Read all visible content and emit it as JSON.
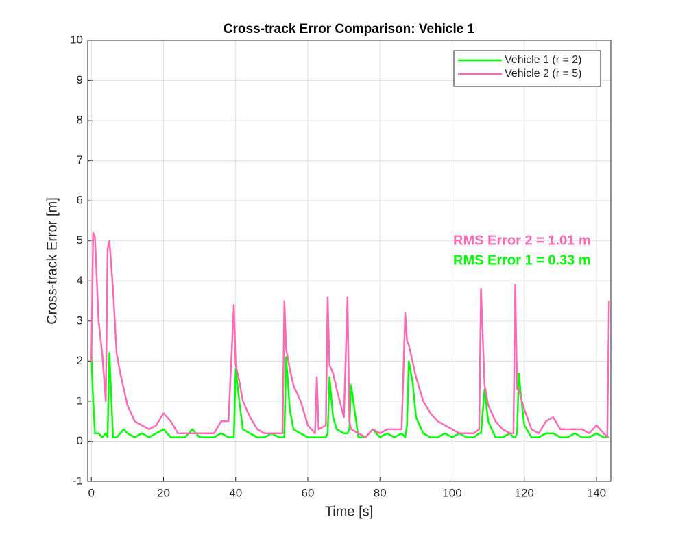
{
  "chart_data": {
    "type": "line",
    "title": "Cross-track Error Comparison: Vehicle 1",
    "xlabel": "Time [s]",
    "ylabel": "Cross-track Error [m]",
    "x": [
      0,
      0.5,
      1,
      2,
      3,
      4,
      4.5,
      5,
      6,
      7,
      8,
      9,
      10,
      12,
      14,
      16,
      18,
      20,
      22,
      24,
      26,
      28,
      30,
      32,
      34,
      36,
      38,
      39.5,
      40,
      41,
      42,
      44,
      46,
      48,
      50,
      52,
      53,
      53.5,
      54,
      55,
      56,
      58,
      60,
      62,
      62.5,
      63,
      65,
      65.5,
      66,
      67,
      68,
      70,
      71,
      71.5,
      72,
      74,
      76,
      78,
      80,
      82,
      84,
      86,
      87,
      87.5,
      88,
      89,
      90,
      92,
      94,
      96,
      98,
      100,
      102,
      104,
      106,
      107.5,
      108,
      109,
      110,
      112,
      114,
      116,
      117,
      117.5,
      118,
      118.5,
      119,
      120,
      122,
      124,
      126,
      128,
      130,
      132,
      134,
      136,
      138,
      140,
      142,
      143,
      143.5
    ],
    "series": [
      {
        "name": "Vehicle 1 (r = 2)",
        "color": "#00ff00",
        "values": [
          2.2,
          1.0,
          0.2,
          0.2,
          0.1,
          0.2,
          0.1,
          2.2,
          0.1,
          0.1,
          0.2,
          0.3,
          0.2,
          0.1,
          0.2,
          0.1,
          0.2,
          0.3,
          0.1,
          0.1,
          0.1,
          0.3,
          0.1,
          0.1,
          0.1,
          0.2,
          0.1,
          0.1,
          1.8,
          1.0,
          0.3,
          0.2,
          0.1,
          0.1,
          0.2,
          0.1,
          0.1,
          0.1,
          2.1,
          0.8,
          0.3,
          0.2,
          0.1,
          0.1,
          0.1,
          0.1,
          0.1,
          0.2,
          1.6,
          0.6,
          0.3,
          0.2,
          0.2,
          0.3,
          1.4,
          0.1,
          0.1,
          0.3,
          0.1,
          0.2,
          0.1,
          0.2,
          0.1,
          0.4,
          2.0,
          1.5,
          0.6,
          0.2,
          0.1,
          0.1,
          0.2,
          0.1,
          0.2,
          0.1,
          0.1,
          0.2,
          0.2,
          1.3,
          0.5,
          0.1,
          0.1,
          0.2,
          0.1,
          0.1,
          0.2,
          1.7,
          1.2,
          0.4,
          0.1,
          0.1,
          0.2,
          0.2,
          0.1,
          0.1,
          0.2,
          0.1,
          0.1,
          0.2,
          0.1,
          0.1,
          0.1
        ]
      },
      {
        "name": "Vehicle 2 (r = 5)",
        "color": "#ff69b4",
        "values": [
          2.0,
          5.2,
          5.1,
          3.0,
          2.2,
          1.0,
          4.8,
          5.0,
          3.8,
          2.2,
          1.7,
          1.3,
          0.9,
          0.5,
          0.4,
          0.3,
          0.4,
          0.7,
          0.5,
          0.2,
          0.2,
          0.2,
          0.2,
          0.2,
          0.2,
          0.5,
          0.5,
          3.4,
          1.9,
          1.5,
          1.0,
          0.6,
          0.3,
          0.2,
          0.2,
          0.2,
          0.2,
          3.5,
          2.3,
          1.8,
          1.4,
          1.0,
          0.4,
          0.2,
          1.6,
          0.3,
          0.4,
          3.6,
          1.9,
          1.7,
          1.3,
          0.6,
          3.6,
          0.5,
          0.3,
          0.2,
          0.1,
          0.3,
          0.2,
          0.3,
          0.3,
          0.3,
          3.2,
          2.5,
          2.4,
          2.0,
          1.6,
          1.0,
          0.7,
          0.5,
          0.4,
          0.3,
          0.2,
          0.2,
          0.2,
          0.3,
          3.8,
          1.4,
          0.9,
          0.5,
          0.3,
          0.2,
          0.2,
          3.9,
          1.3,
          1.3,
          1.1,
          0.8,
          0.3,
          0.2,
          0.5,
          0.6,
          0.3,
          0.3,
          0.3,
          0.3,
          0.2,
          0.4,
          0.2,
          0.1,
          3.5
        ]
      }
    ],
    "xlim": [
      -1,
      144
    ],
    "ylim": [
      -1,
      10
    ],
    "xticks": [
      0,
      20,
      40,
      60,
      80,
      100,
      120,
      140
    ],
    "yticks": [
      -1,
      0,
      1,
      2,
      3,
      4,
      5,
      6,
      7,
      8,
      9,
      10
    ],
    "grid": true,
    "legend": "northeast",
    "annotations": [
      {
        "text": "RMS Error 2 = 1.01 m",
        "color": "#ff69b4"
      },
      {
        "text": "RMS Error 1 = 0.33 m",
        "color": "#00ff00"
      }
    ]
  }
}
